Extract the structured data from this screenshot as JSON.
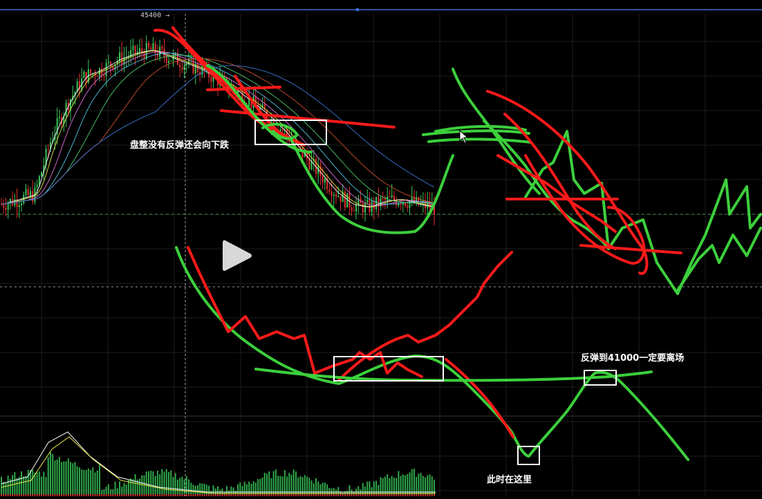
{
  "price_label": "45400 →",
  "annotations": {
    "consolidation_note": "盘整没有反弹还会向下跌",
    "rebound_target": "反弹到41000一定要离场",
    "current_position": "此时在这里"
  },
  "icons": [
    "play-icon",
    "mouse-cursor-icon",
    "right-arrow-icon"
  ],
  "colors": {
    "background": "#000000",
    "up_candle": "#3cc85a",
    "down_candle": "#e03030",
    "drawing_green": "#3ccf3c",
    "drawing_red": "#ff1a1a",
    "grid": "#1e1e1e",
    "top_line": "#3a6fd6",
    "box": "#ffffff",
    "ma_colors": [
      "#ffffff",
      "#e6e64a",
      "#e070e0",
      "#4fc8e8",
      "#4fd070",
      "#d05030",
      "#3c78d8"
    ]
  },
  "chart_data": {
    "type": "candlestick",
    "title": "",
    "xlabel": "",
    "ylabel": "",
    "price_labels": [
      45400
    ],
    "series": [
      {
        "values": [
          40200,
          40350,
          40500,
          42200,
          43300,
          44100,
          44300,
          44600,
          44800,
          44900,
          44700,
          44500,
          44300,
          44000,
          43700,
          43300,
          42900,
          42400,
          41800,
          41200,
          40600,
          40200,
          40100,
          40300,
          40350,
          40200,
          40100
        ]
      }
    ],
    "grid": true
  }
}
